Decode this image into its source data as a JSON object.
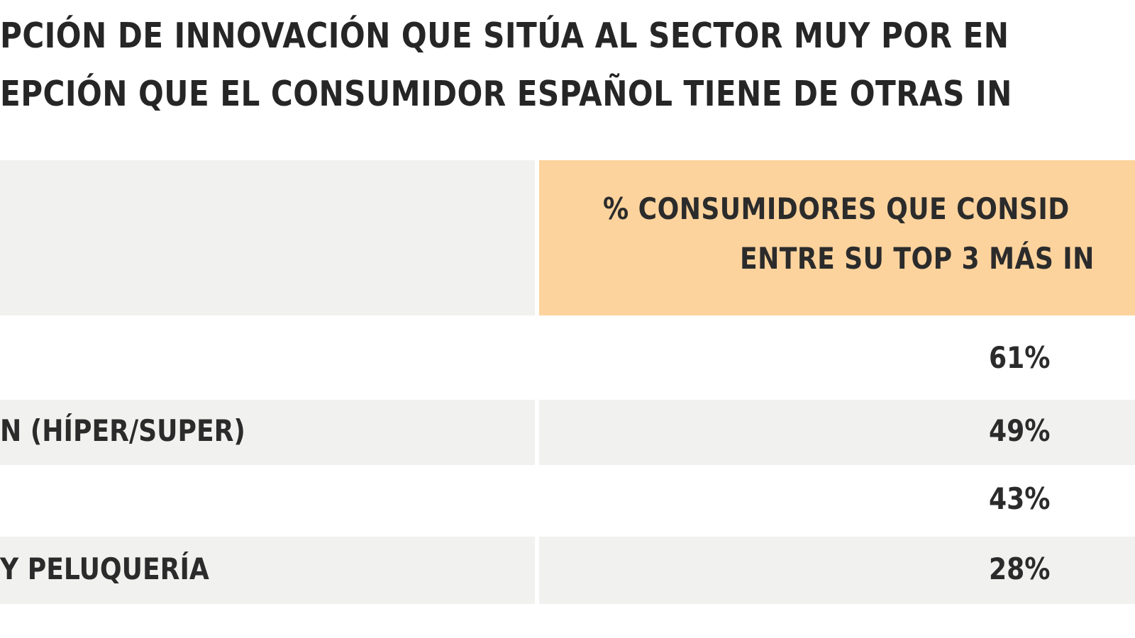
{
  "title": {
    "line1": "PCIÓN DE INNOVACIÓN QUE SITÚA AL SECTOR MUY POR EN",
    "line2": "EPCIÓN QUE EL CONSUMIDOR ESPAÑOL TIENE DE OTRAS IN"
  },
  "colors": {
    "header_left_bg": "#f1f1f0",
    "header_right_bg": "#fdd39d",
    "row_shade_bg": "#f1f1f0",
    "text": "#2b2b2b"
  },
  "chart_data": {
    "type": "table",
    "columns": [
      "",
      "% CONSUMIDORES QUE CONSID ENTRE SU TOP 3 MÁS IN"
    ],
    "column_header_lines": [
      "% CONSUMIDORES QUE CONSID",
      "ENTRE SU TOP 3 MÁS IN"
    ],
    "rows": [
      {
        "label": "",
        "value": "61%"
      },
      {
        "label": "N (HÍPER/SUPER)",
        "value": "49%"
      },
      {
        "label": "",
        "value": "43%"
      },
      {
        "label": "Y PELUQUERÍA",
        "value": "28%"
      }
    ],
    "values": [
      61,
      49,
      43,
      28
    ],
    "unit": "%"
  }
}
